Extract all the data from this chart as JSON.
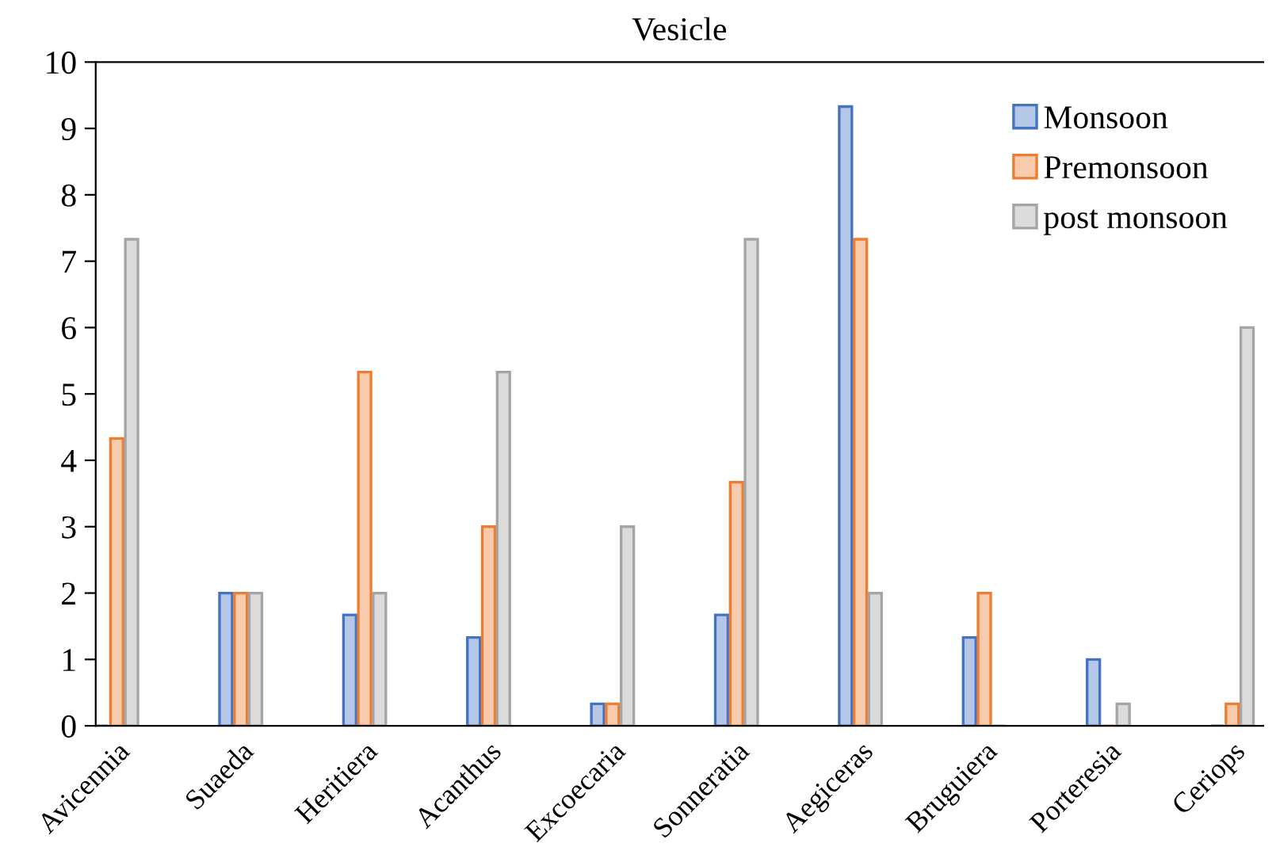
{
  "chart_data": {
    "type": "bar",
    "title": "Vesicle",
    "categories": [
      "Avicennia",
      "Suaeda",
      "Heritiera",
      "Acanthus",
      "Excoecaria",
      "Sonneratia",
      "Aegiceras",
      "Bruguiera",
      "Porteresia",
      "Ceriops"
    ],
    "series": [
      {
        "name": "Monsoon",
        "color": "#4472c4",
        "values": [
          0,
          2,
          1.67,
          1.33,
          0.33,
          1.67,
          9.33,
          1.33,
          1,
          0
        ]
      },
      {
        "name": "Premonsoon",
        "color": "#ed7d31",
        "values": [
          4.33,
          2,
          5.33,
          3,
          0.33,
          3.67,
          7.33,
          2,
          0,
          0.33
        ]
      },
      {
        "name": "post monsoon",
        "color": "#a5a5a5",
        "values": [
          7.33,
          2,
          2,
          5.33,
          3,
          7.33,
          2,
          0,
          0.33,
          6
        ]
      }
    ],
    "ylim": [
      0,
      10
    ],
    "yticks": [
      0,
      1,
      2,
      3,
      4,
      5,
      6,
      7,
      8,
      9,
      10
    ],
    "grid": false,
    "legend": "top right"
  }
}
